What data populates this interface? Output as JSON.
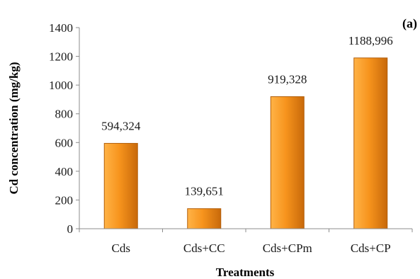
{
  "panel_label": "(a)",
  "chart_data": {
    "type": "bar",
    "categories": [
      "Cds",
      "Cds+CC",
      "Cds+CPm",
      "Cds+CP"
    ],
    "values": [
      594.324,
      139.651,
      919.328,
      1188.996
    ],
    "data_labels": [
      "594,324",
      "139,651",
      "919,328",
      "1188,996"
    ],
    "xlabel": "Treatments",
    "ylabel": "Cd concentration (mg/kg)",
    "ylim": [
      0,
      1400
    ],
    "yticks": [
      0,
      200,
      400,
      600,
      800,
      1000,
      1200,
      1400
    ],
    "grid": false,
    "legend": "none",
    "bar_color_light": "#FFB347",
    "bar_color_mid": "#F7941D",
    "bar_color_dark": "#C8690A"
  }
}
